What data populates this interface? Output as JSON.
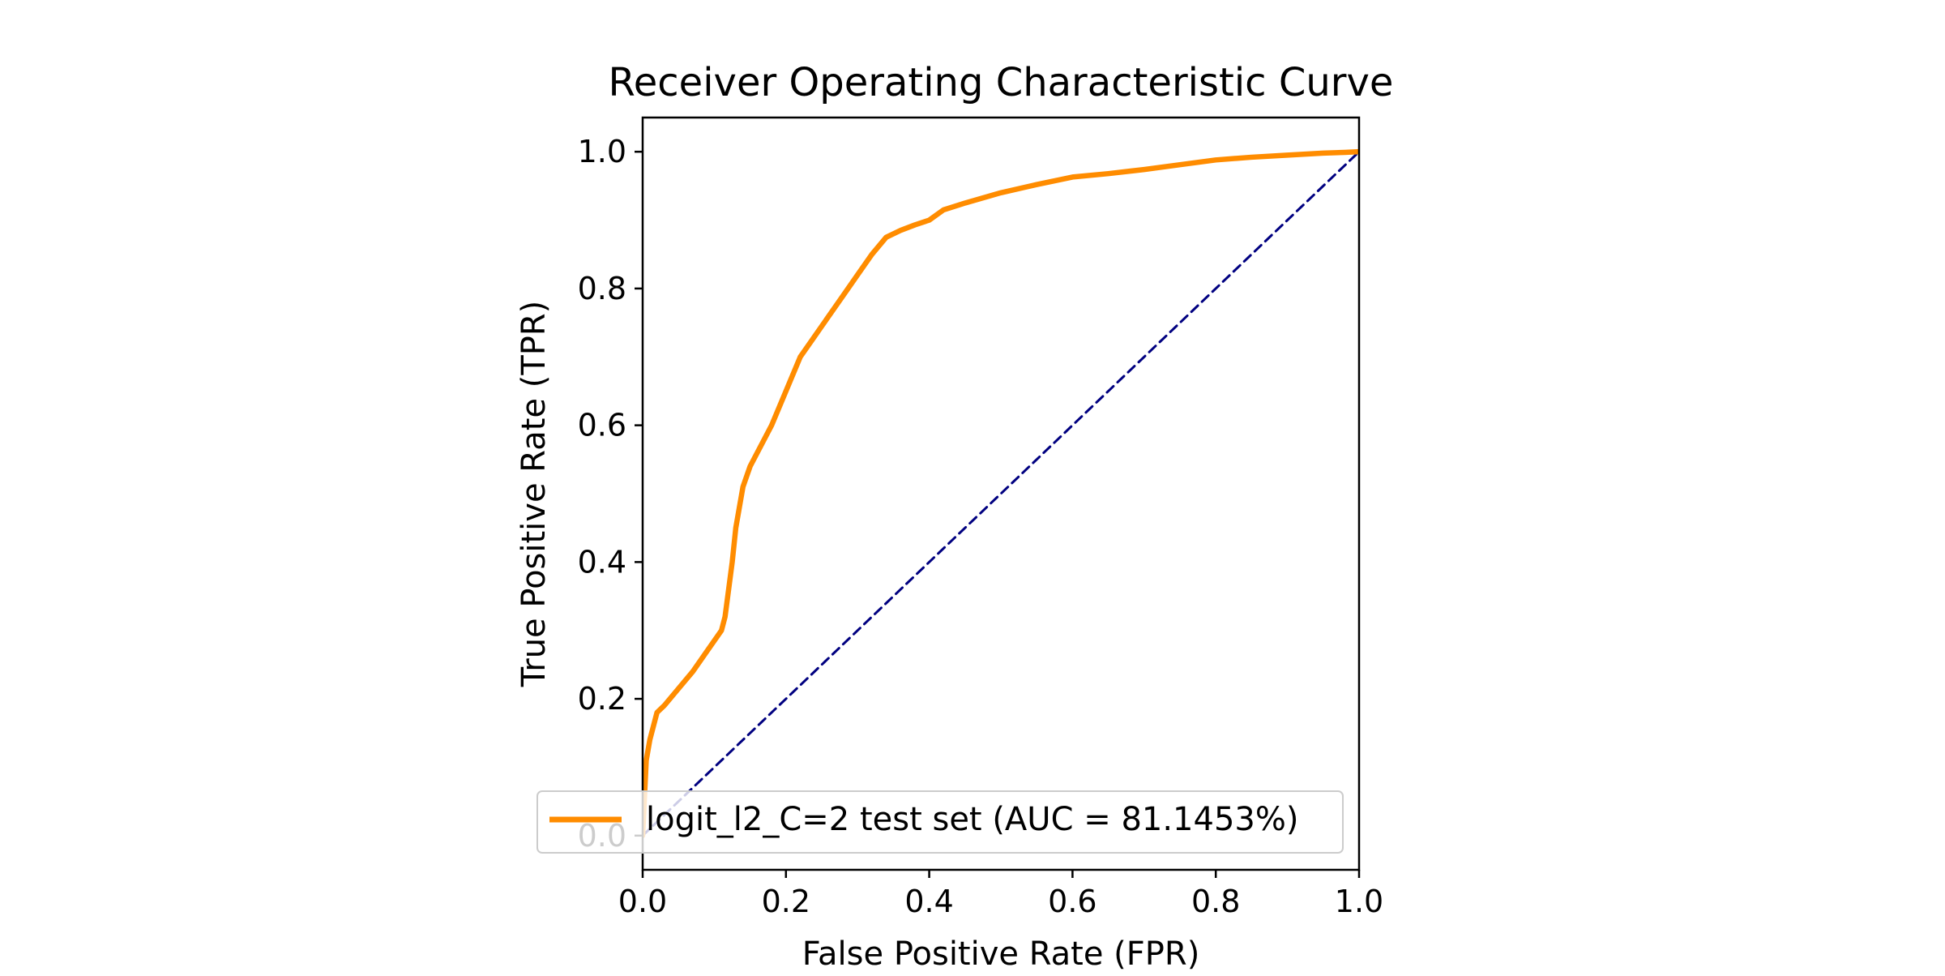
{
  "chart_data": {
    "type": "line",
    "title": "Receiver Operating Characteristic Curve",
    "xlabel": "False Positive Rate (FPR)",
    "ylabel": "True Positive Rate (TPR)",
    "xlim": [
      0.0,
      1.0
    ],
    "ylim": [
      -0.05,
      1.05
    ],
    "xticks": [
      "0.0",
      "0.2",
      "0.4",
      "0.6",
      "0.8",
      "1.0"
    ],
    "yticks": [
      "0.0",
      "0.2",
      "0.4",
      "0.6",
      "0.8",
      "1.0"
    ],
    "grid": false,
    "legend_position": "lower right",
    "series": [
      {
        "name": "logit_l2_C=2 test set (AUC = 81.1453%)",
        "color": "#ff8c00",
        "style": "solid",
        "x": [
          0.0,
          0.005,
          0.01,
          0.02,
          0.03,
          0.05,
          0.07,
          0.09,
          0.11,
          0.115,
          0.12,
          0.125,
          0.13,
          0.135,
          0.14,
          0.15,
          0.16,
          0.18,
          0.2,
          0.22,
          0.24,
          0.26,
          0.28,
          0.3,
          0.32,
          0.34,
          0.36,
          0.38,
          0.4,
          0.42,
          0.45,
          0.5,
          0.55,
          0.6,
          0.65,
          0.7,
          0.75,
          0.8,
          0.85,
          0.9,
          0.95,
          0.98,
          1.0
        ],
        "y": [
          0.0,
          0.11,
          0.14,
          0.18,
          0.19,
          0.215,
          0.24,
          0.27,
          0.3,
          0.32,
          0.36,
          0.4,
          0.45,
          0.48,
          0.51,
          0.54,
          0.56,
          0.6,
          0.65,
          0.7,
          0.73,
          0.76,
          0.79,
          0.82,
          0.85,
          0.875,
          0.885,
          0.893,
          0.9,
          0.915,
          0.925,
          0.94,
          0.952,
          0.963,
          0.968,
          0.974,
          0.981,
          0.988,
          0.992,
          0.995,
          0.998,
          0.999,
          1.0
        ]
      },
      {
        "color": "#000080",
        "style": "dashed",
        "x": [
          0.0,
          1.0
        ],
        "y": [
          0.0,
          1.0
        ]
      }
    ]
  }
}
